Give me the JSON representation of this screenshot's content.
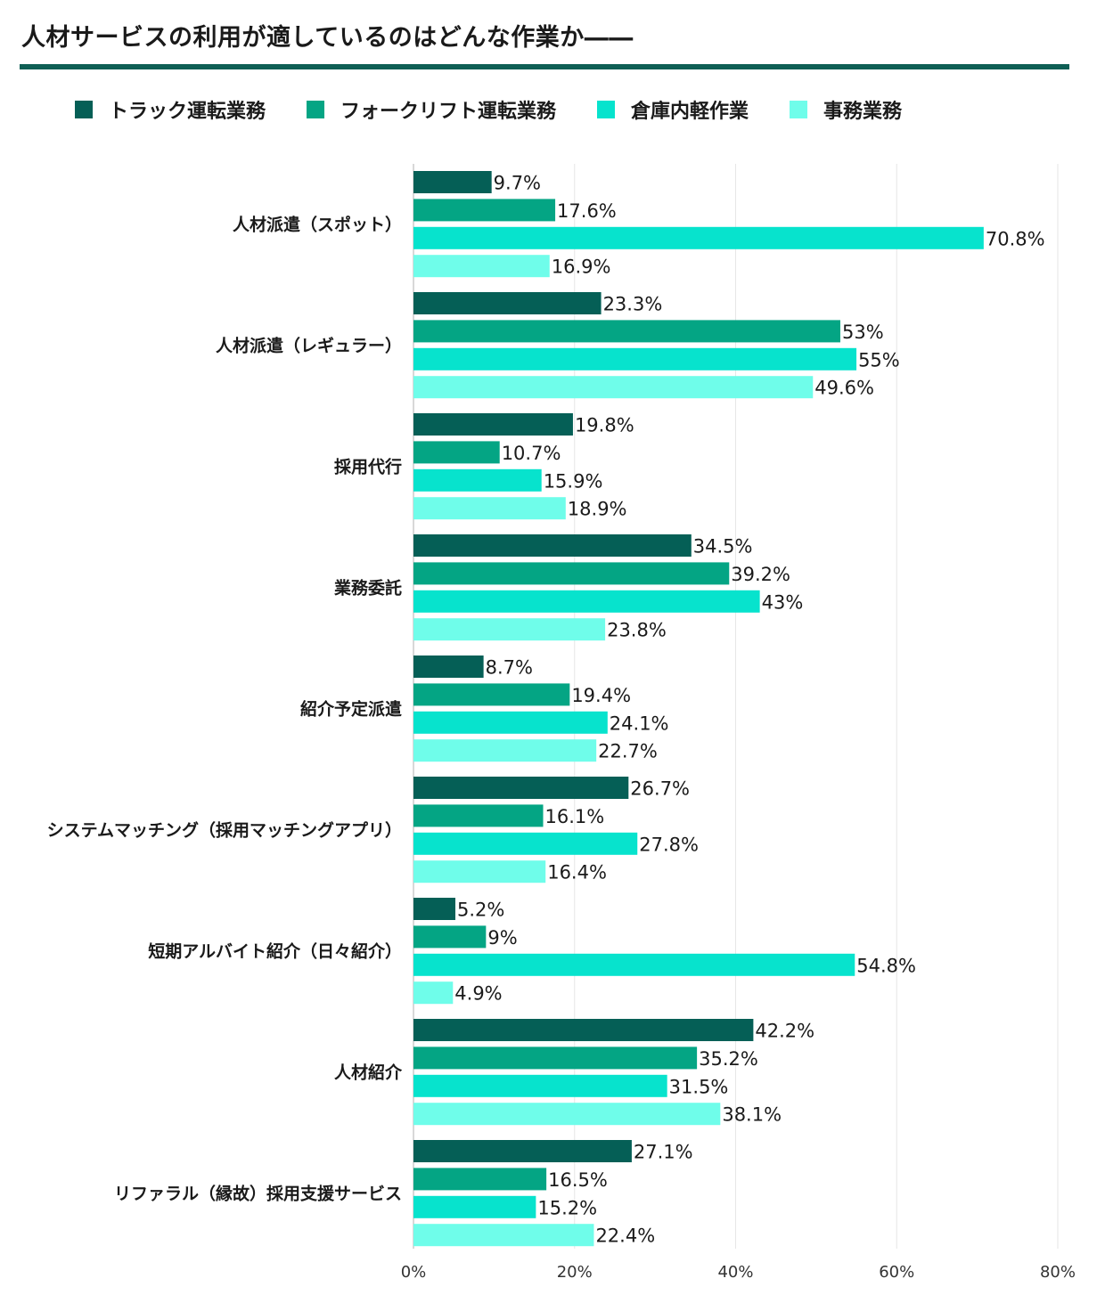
{
  "title": "人材サービスの利用が適しているのはどんな作業か――",
  "colors": {
    "title_rule": "#0f5f55",
    "grid": "#e6e6e6",
    "axis": "#cccccc"
  },
  "chart_data": {
    "type": "bar",
    "orientation": "horizontal",
    "title": "人材サービスの利用が適しているのはどんな作業か――",
    "xlabel": "",
    "ylabel": "",
    "xlim": [
      0,
      80
    ],
    "ticks": [
      "0%",
      "20%",
      "40%",
      "60%",
      "80%"
    ],
    "tick_values": [
      0,
      20,
      40,
      60,
      80
    ],
    "grid": true,
    "legend_position": "top-left",
    "categories": [
      "人材派遣（スポット）",
      "人材派遣（レギュラー）",
      "採用代行",
      "業務委託",
      "紹介予定派遣",
      "システムマッチング（採用マッチングアプリ）",
      "短期アルバイト紹介（日々紹介）",
      "人材紹介",
      "リファラル（縁故）採用支援サービス"
    ],
    "series": [
      {
        "name": "トラック運転業務",
        "color": "#055f56",
        "values": [
          9.7,
          23.3,
          19.8,
          34.5,
          8.7,
          26.7,
          5.2,
          42.2,
          27.1
        ],
        "labels": [
          "9.7%",
          "23.3%",
          "19.8%",
          "34.5%",
          "8.7%",
          "26.7%",
          "5.2%",
          "42.2%",
          "27.1%"
        ]
      },
      {
        "name": "フォークリフト運転業務",
        "color": "#04a584",
        "values": [
          17.6,
          53,
          10.7,
          39.2,
          19.4,
          16.1,
          9,
          35.2,
          16.5
        ],
        "labels": [
          "17.6%",
          "53%",
          "10.7%",
          "39.2%",
          "19.4%",
          "16.1%",
          "9%",
          "35.2%",
          "16.5%"
        ]
      },
      {
        "name": "倉庫内軽作業",
        "color": "#07e3cd",
        "values": [
          70.8,
          55,
          15.9,
          43,
          24.1,
          27.8,
          54.8,
          31.5,
          15.2
        ],
        "labels": [
          "70.8%",
          "55%",
          "15.9%",
          "43%",
          "24.1%",
          "27.8%",
          "54.8%",
          "31.5%",
          "15.2%"
        ]
      },
      {
        "name": "事務業務",
        "color": "#6ffdea",
        "values": [
          16.9,
          49.6,
          18.9,
          23.8,
          22.7,
          16.4,
          4.9,
          38.1,
          22.4
        ],
        "labels": [
          "16.9%",
          "49.6%",
          "18.9%",
          "23.8%",
          "22.7%",
          "16.4%",
          "4.9%",
          "38.1%",
          "22.4%"
        ]
      }
    ]
  }
}
